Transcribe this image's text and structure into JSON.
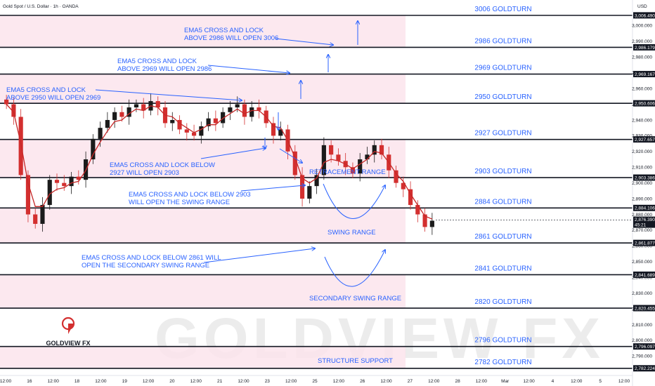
{
  "header": {
    "symbol": "Gold Spot / U.S. Dollar · 1h · OANDA",
    "currency": "USD"
  },
  "watermark": "GOLDVIEW FX",
  "logo": {
    "text": "GOLDVIEW FX",
    "accent": "#d32f2f"
  },
  "colors": {
    "line": "#131722",
    "zone": "#fce4ec",
    "label": "#2962ff",
    "bull": "#1b1b1b",
    "bear": "#d32f2f",
    "ema": "#c62828"
  },
  "chart_data": {
    "type": "candlestick",
    "title": "Gold Spot / U.S. Dollar · 1h · OANDA",
    "ylim": [
      2779,
      3010
    ],
    "y_ticks": [
      3000,
      2990,
      2980,
      2970,
      2960,
      2950,
      2940,
      2930,
      2920,
      2910,
      2900,
      2890,
      2880,
      2870,
      2860,
      2850,
      2840,
      2830,
      2820,
      2810,
      2800,
      2790
    ],
    "x_ticks": [
      "12:00",
      "16",
      "12:00",
      "18",
      "12:00",
      "19",
      "12:00",
      "20",
      "12:00",
      "21",
      "12:00",
      "23",
      "12:00",
      "25",
      "12:00",
      "26",
      "12:00",
      "27",
      "12:00",
      "28",
      "12:00",
      "Mar",
      "12:00",
      "4",
      "12:00",
      "5",
      "12:00"
    ],
    "levels": [
      {
        "label": "3006 GOLDTURN",
        "tag": "3,006.490",
        "value": 3006.49
      },
      {
        "label": "2986 GOLDTURN",
        "tag": "2,986.179",
        "value": 2986.18
      },
      {
        "label": "2969 GOLDTURN",
        "tag": "2,969.167",
        "value": 2969.17
      },
      {
        "label": "2950 GOLDTURN",
        "tag": "2,950.606",
        "value": 2950.61
      },
      {
        "label": "2927 GOLDTURN",
        "tag": "2,927.657",
        "value": 2927.66
      },
      {
        "label": "2903 GOLDTURN",
        "tag": "2,903.386",
        "value": 2903.39
      },
      {
        "label": "2884 GOLDTURN",
        "tag": "2,884.106",
        "value": 2884.11
      },
      {
        "label": "2861 GOLDTURN",
        "tag": "2,861.877",
        "value": 2861.88
      },
      {
        "label": "2841 GOLDTURN",
        "tag": "2,841.689",
        "value": 2841.69
      },
      {
        "label": "2820 GOLDTURN",
        "tag": "2,820.455",
        "value": 2820.46
      },
      {
        "label": "2796 GOLDTURN",
        "tag": "2,796.097",
        "value": 2796.1
      },
      {
        "label": "2782 GOLDTURN",
        "tag": "2,782.224",
        "value": 2782.22
      }
    ],
    "current_price": {
      "tag": "2,876.390",
      "countdown": "45:21",
      "value": 2876.39
    },
    "ohlc_path": [
      2950,
      2942,
      2905,
      2880,
      2874,
      2886,
      2902,
      2900,
      2898,
      2904,
      2902,
      2915,
      2928,
      2935,
      2940,
      2945,
      2942,
      2948,
      2950,
      2946,
      2952,
      2948,
      2938,
      2940,
      2934,
      2932,
      2930,
      2936,
      2941,
      2938,
      2945,
      2948,
      2950,
      2942,
      2948,
      2946,
      2938,
      2930,
      2934,
      2920,
      2905,
      2890,
      2898,
      2905,
      2924,
      2918,
      2914,
      2910,
      2906,
      2915,
      2918,
      2924,
      2918,
      2908,
      2900,
      2896,
      2886,
      2880,
      2872,
      2876
    ],
    "ema5_path": [
      2950,
      2945,
      2925,
      2900,
      2885,
      2885,
      2893,
      2896,
      2897,
      2900,
      2901,
      2908,
      2918,
      2926,
      2933,
      2939,
      2940,
      2944,
      2947,
      2946,
      2949,
      2948,
      2943,
      2942,
      2938,
      2935,
      2932,
      2934,
      2937,
      2937,
      2941,
      2944,
      2947,
      2944,
      2946,
      2946,
      2942,
      2936,
      2935,
      2927,
      2916,
      2903,
      2900,
      2903,
      2913,
      2915,
      2914,
      2912,
      2909,
      2912,
      2915,
      2920,
      2919,
      2913,
      2906,
      2901,
      2893,
      2886,
      2879,
      2877
    ],
    "annotations": [
      {
        "text": [
          "EMA5 CROSS AND LOCK",
          "ABOVE 2986 WILL OPEN 3006"
        ]
      },
      {
        "text": [
          "EMA5 CROSS AND LOCK",
          "ABOVE 2969 WILL OPEN 2986"
        ]
      },
      {
        "text": [
          "EMA5 CROSS AND LOCK",
          "ABOVE 2950 WILL OPEN 2969"
        ]
      },
      {
        "text": [
          "EMA5 CROSS AND LOCK BELOW",
          "2927 WILL OPEN 2903"
        ]
      },
      {
        "text": [
          "EMA5 CROSS AND LOCK BELOW 2903",
          "WILL OPEN THE SWING RANGE"
        ]
      },
      {
        "text": [
          "EMA5 CROSS AND LOCK BELOW 2861 WILL",
          "OPEN THE SECONDARY SWING RANGE"
        ]
      },
      {
        "text": [
          "RETRACEMENT RANGE"
        ]
      },
      {
        "text": [
          "SWING RANGE"
        ]
      },
      {
        "text": [
          "SECONDARY SWING RANGE"
        ]
      },
      {
        "text": [
          "STRUCTURE SUPPORT"
        ]
      }
    ]
  }
}
